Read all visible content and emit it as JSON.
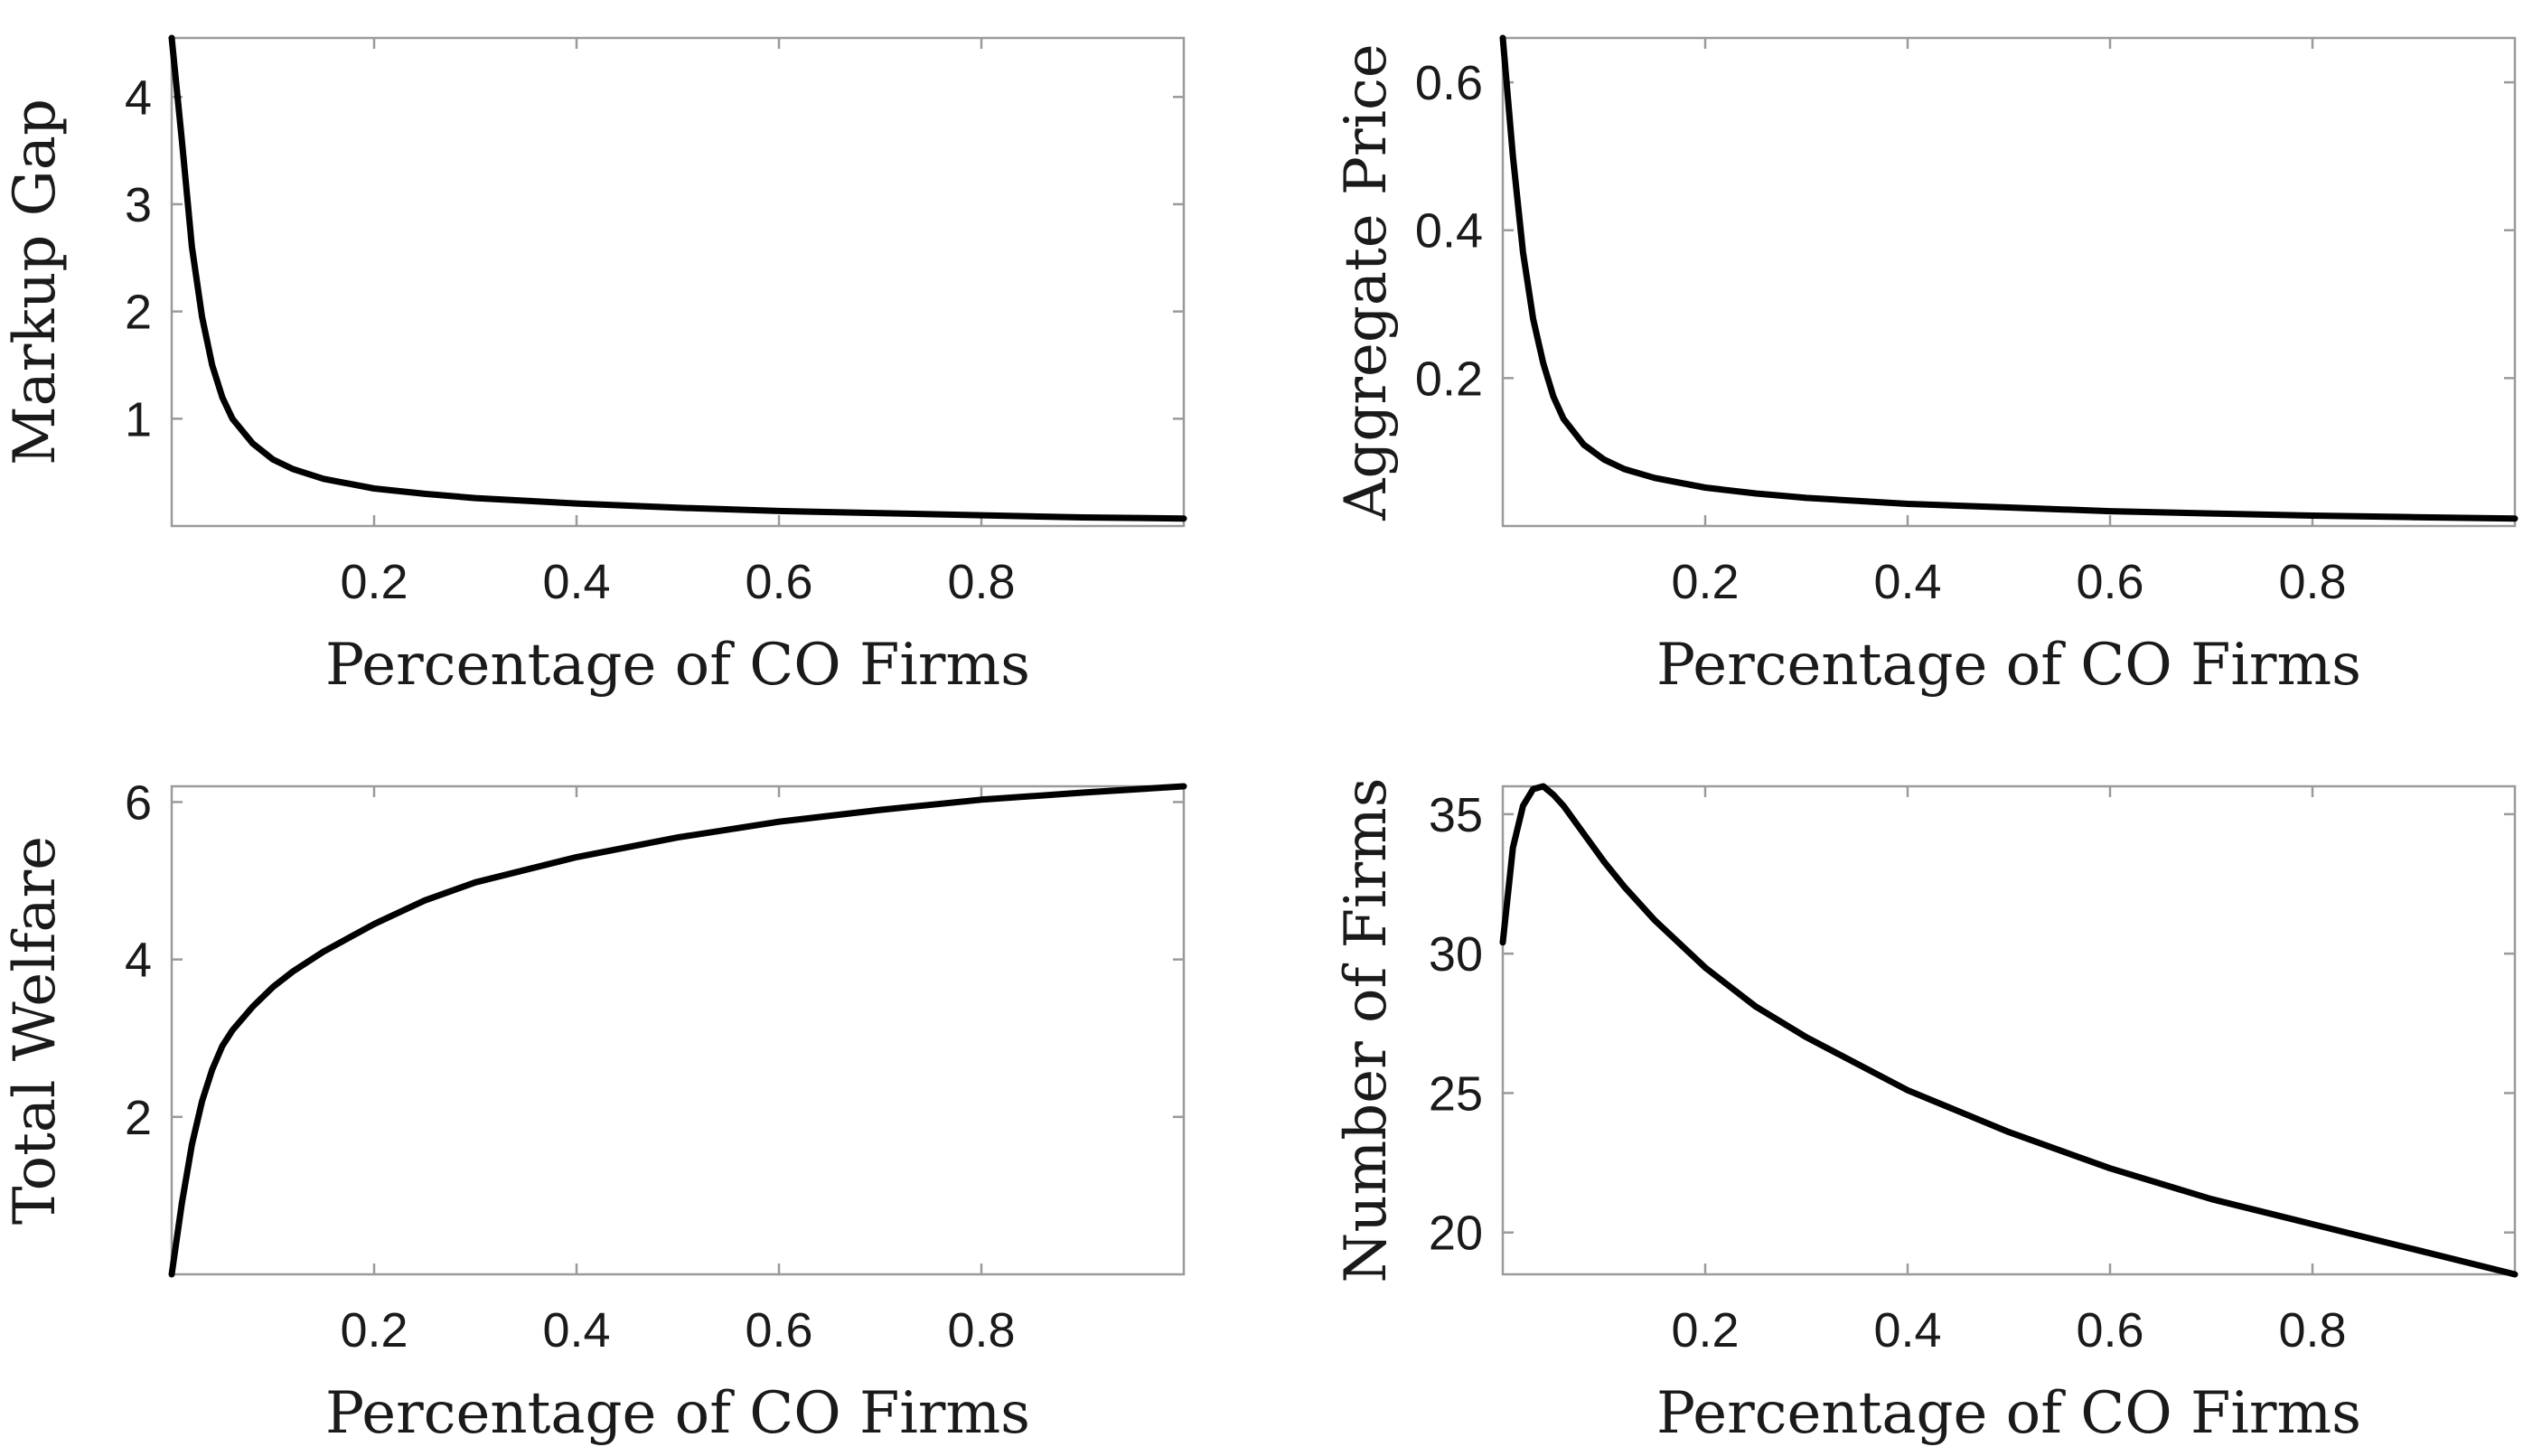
{
  "chart_data": [
    {
      "type": "line",
      "xlabel": "Percentage of CO Firms",
      "ylabel": "Markup Gap",
      "xlim": [
        0.0,
        1.0
      ],
      "ylim": [
        0.0,
        4.55
      ],
      "xticks": [
        0.2,
        0.4,
        0.6,
        0.8
      ],
      "xtick_labels": [
        "0.2",
        "0.4",
        "0.6",
        "0.8"
      ],
      "yticks": [
        1,
        2,
        3,
        4
      ],
      "ytick_labels": [
        "1",
        "2",
        "3",
        "4"
      ],
      "grid": false,
      "series": [
        {
          "name": "Markup Gap",
          "x": [
            0.0,
            0.01,
            0.02,
            0.03,
            0.04,
            0.05,
            0.06,
            0.08,
            0.1,
            0.12,
            0.15,
            0.2,
            0.25,
            0.3,
            0.4,
            0.5,
            0.6,
            0.7,
            0.8,
            0.9,
            1.0
          ],
          "values": [
            4.55,
            3.6,
            2.6,
            1.95,
            1.5,
            1.2,
            1.0,
            0.77,
            0.62,
            0.53,
            0.44,
            0.35,
            0.3,
            0.26,
            0.21,
            0.17,
            0.14,
            0.12,
            0.1,
            0.08,
            0.07
          ]
        }
      ]
    },
    {
      "type": "line",
      "xlabel": "Percentage of CO Firms",
      "ylabel": "Aggregate Price",
      "xlim": [
        0.0,
        1.0
      ],
      "ylim": [
        0.0,
        0.66
      ],
      "xticks": [
        0.2,
        0.4,
        0.6,
        0.8
      ],
      "xtick_labels": [
        "0.2",
        "0.4",
        "0.6",
        "0.8"
      ],
      "yticks": [
        0.2,
        0.4,
        0.6
      ],
      "ytick_labels": [
        "0.2",
        "0.4",
        "0.6"
      ],
      "grid": false,
      "series": [
        {
          "name": "Aggregate Price",
          "x": [
            0.0,
            0.01,
            0.02,
            0.03,
            0.04,
            0.05,
            0.06,
            0.08,
            0.1,
            0.12,
            0.15,
            0.2,
            0.25,
            0.3,
            0.4,
            0.5,
            0.6,
            0.7,
            0.8,
            0.9,
            1.0
          ],
          "values": [
            0.66,
            0.5,
            0.37,
            0.28,
            0.22,
            0.175,
            0.145,
            0.11,
            0.09,
            0.077,
            0.065,
            0.052,
            0.044,
            0.038,
            0.03,
            0.025,
            0.02,
            0.017,
            0.014,
            0.012,
            0.01
          ]
        }
      ]
    },
    {
      "type": "line",
      "xlabel": "Percentage of CO Firms",
      "ylabel": "Total Welfare",
      "xlim": [
        0.0,
        1.0
      ],
      "ylim": [
        0.0,
        6.2
      ],
      "xticks": [
        0.2,
        0.4,
        0.6,
        0.8
      ],
      "xtick_labels": [
        "0.2",
        "0.4",
        "0.6",
        "0.8"
      ],
      "yticks": [
        2,
        4,
        6
      ],
      "ytick_labels": [
        "2",
        "4",
        "6"
      ],
      "grid": false,
      "series": [
        {
          "name": "Total Welfare",
          "x": [
            0.0,
            0.01,
            0.02,
            0.03,
            0.04,
            0.05,
            0.06,
            0.08,
            0.1,
            0.12,
            0.15,
            0.2,
            0.25,
            0.3,
            0.4,
            0.5,
            0.6,
            0.7,
            0.8,
            0.9,
            1.0
          ],
          "values": [
            0.0,
            0.9,
            1.65,
            2.2,
            2.6,
            2.9,
            3.1,
            3.4,
            3.65,
            3.85,
            4.1,
            4.45,
            4.75,
            4.98,
            5.3,
            5.55,
            5.75,
            5.9,
            6.03,
            6.12,
            6.2
          ]
        }
      ]
    },
    {
      "type": "line",
      "xlabel": "Percentage of CO Firms",
      "ylabel": "Number of Firms",
      "xlim": [
        0.0,
        1.0
      ],
      "ylim": [
        18.5,
        36.0
      ],
      "xticks": [
        0.2,
        0.4,
        0.6,
        0.8
      ],
      "xtick_labels": [
        "0.2",
        "0.4",
        "0.6",
        "0.8"
      ],
      "yticks": [
        20,
        25,
        30,
        35
      ],
      "ytick_labels": [
        "20",
        "25",
        "30",
        "35"
      ],
      "grid": false,
      "series": [
        {
          "name": "Number of Firms",
          "x": [
            0.0,
            0.01,
            0.02,
            0.03,
            0.04,
            0.05,
            0.06,
            0.08,
            0.1,
            0.12,
            0.15,
            0.2,
            0.25,
            0.3,
            0.4,
            0.5,
            0.6,
            0.7,
            0.8,
            0.9,
            1.0
          ],
          "values": [
            30.4,
            33.8,
            35.3,
            35.9,
            36.0,
            35.7,
            35.3,
            34.3,
            33.3,
            32.4,
            31.2,
            29.5,
            28.1,
            27.0,
            25.1,
            23.6,
            22.3,
            21.2,
            20.3,
            19.4,
            18.5
          ]
        }
      ]
    }
  ]
}
